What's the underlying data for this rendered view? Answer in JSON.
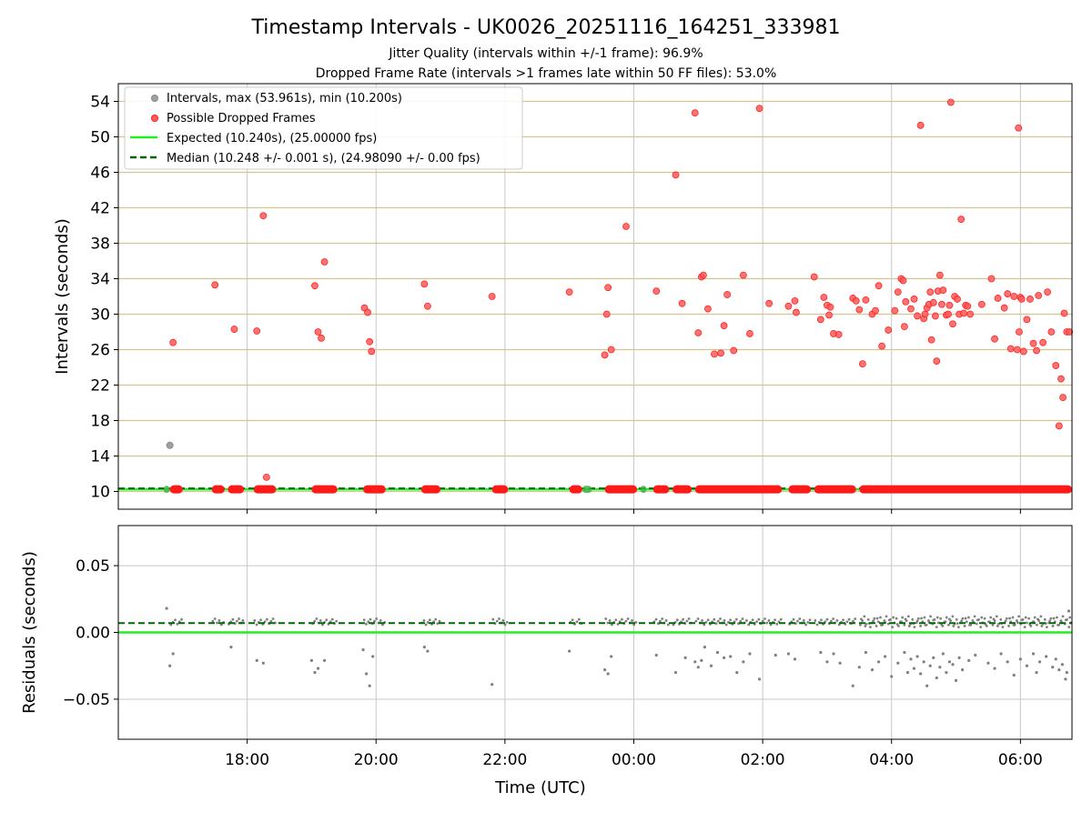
{
  "chart_data": [
    {
      "type": "scatter",
      "title": "Timestamp Intervals - UK0026_20251116_164251_333981",
      "subtitle_lines": [
        "Jitter Quality (intervals within +/-1 frame): 96.9%",
        "Dropped Frame Rate (intervals >1 frames late within 50 FF files): 53.0%"
      ],
      "xlabel": "",
      "ylabel": "Intervals (seconds)",
      "xlim_hours": [
        16.0,
        30.8
      ],
      "ylim": [
        8.0,
        56.0
      ],
      "yticks": [
        10,
        14,
        18,
        22,
        26,
        30,
        34,
        38,
        42,
        46,
        50,
        54
      ],
      "ytick_labels": [
        "10",
        "14",
        "18",
        "22",
        "26",
        "30",
        "34",
        "38",
        "42",
        "46",
        "50",
        "54"
      ],
      "xticks_hours": [
        18,
        20,
        22,
        24,
        26,
        28,
        30
      ],
      "grid": "x vertical grey, y horizontal tan",
      "legend_position": "upper-left",
      "legend": [
        {
          "label": "Intervals, max (53.961s), min (10.200s)",
          "kind": "marker",
          "color": "#a0a0a0"
        },
        {
          "label": "Possible Dropped Frames",
          "kind": "marker",
          "color": "#ff5a5a"
        },
        {
          "label": "Expected (10.240s), (25.00000 fps)",
          "kind": "line",
          "color": "#22ee22",
          "dash": false
        },
        {
          "label": "Median (10.248 +/- 0.001 s), (24.98090 +/- 0.00 fps)",
          "kind": "line",
          "color": "#006600",
          "dash": true
        }
      ],
      "expected_value": 10.24,
      "median_value": 10.248,
      "baseline_segments_hours": [
        [
          16.8,
          17.0
        ],
        [
          17.45,
          17.65
        ],
        [
          17.7,
          17.95
        ],
        [
          18.1,
          18.45
        ],
        [
          19.0,
          19.4
        ],
        [
          19.8,
          20.15
        ],
        [
          20.7,
          21.0
        ],
        [
          21.8,
          22.05
        ],
        [
          23.0,
          23.2
        ],
        [
          23.55,
          24.05
        ],
        [
          24.3,
          24.55
        ],
        [
          24.6,
          24.9
        ],
        [
          24.95,
          26.3
        ],
        [
          26.4,
          26.75
        ],
        [
          26.8,
          27.45
        ],
        [
          27.5,
          30.8
        ]
      ],
      "baseline_grey_segments_hours": [
        [
          16.7,
          16.8
        ],
        [
          23.2,
          23.35
        ],
        [
          24.1,
          24.2
        ]
      ],
      "grey_points": [
        [
          16.8,
          15.2
        ]
      ],
      "dropped_points": [
        [
          16.85,
          26.8
        ],
        [
          17.5,
          33.3
        ],
        [
          17.8,
          28.3
        ],
        [
          18.15,
          28.1
        ],
        [
          18.25,
          41.1
        ],
        [
          18.3,
          11.6
        ],
        [
          19.05,
          33.2
        ],
        [
          19.1,
          28.0
        ],
        [
          19.15,
          27.3
        ],
        [
          19.2,
          35.9
        ],
        [
          19.82,
          30.7
        ],
        [
          19.87,
          30.2
        ],
        [
          19.9,
          26.9
        ],
        [
          19.93,
          25.8
        ],
        [
          20.75,
          33.4
        ],
        [
          20.8,
          30.9
        ],
        [
          21.8,
          32.0
        ],
        [
          23.0,
          32.5
        ],
        [
          23.55,
          25.4
        ],
        [
          23.58,
          30.0
        ],
        [
          23.6,
          33.0
        ],
        [
          23.65,
          26.0
        ],
        [
          23.88,
          39.9
        ],
        [
          24.35,
          32.6
        ],
        [
          24.65,
          45.7
        ],
        [
          24.75,
          31.2
        ],
        [
          24.95,
          52.7
        ],
        [
          25.0,
          27.9
        ],
        [
          25.05,
          34.2
        ],
        [
          25.08,
          34.4
        ],
        [
          25.15,
          30.6
        ],
        [
          25.25,
          25.5
        ],
        [
          25.35,
          25.6
        ],
        [
          25.4,
          28.7
        ],
        [
          25.45,
          32.2
        ],
        [
          25.55,
          25.9
        ],
        [
          25.7,
          34.4
        ],
        [
          25.8,
          27.8
        ],
        [
          25.95,
          53.2
        ],
        [
          26.1,
          31.2
        ],
        [
          26.4,
          30.9
        ],
        [
          26.5,
          31.5
        ],
        [
          26.52,
          30.2
        ],
        [
          26.8,
          34.2
        ],
        [
          26.9,
          29.4
        ],
        [
          26.95,
          31.9
        ],
        [
          27.0,
          31.0
        ],
        [
          27.03,
          29.9
        ],
        [
          27.05,
          30.8
        ],
        [
          27.1,
          27.8
        ],
        [
          27.18,
          27.7
        ],
        [
          27.4,
          31.8
        ],
        [
          27.45,
          31.5
        ],
        [
          27.5,
          30.5
        ],
        [
          27.55,
          24.4
        ],
        [
          27.6,
          31.6
        ],
        [
          27.7,
          30.0
        ],
        [
          27.75,
          30.4
        ],
        [
          27.8,
          33.2
        ],
        [
          27.85,
          26.4
        ],
        [
          27.95,
          28.2
        ],
        [
          28.05,
          30.4
        ],
        [
          28.1,
          32.5
        ],
        [
          28.15,
          34.0
        ],
        [
          28.18,
          33.8
        ],
        [
          28.2,
          28.6
        ],
        [
          28.22,
          31.4
        ],
        [
          28.3,
          30.6
        ],
        [
          28.35,
          31.7
        ],
        [
          28.4,
          29.8
        ],
        [
          28.45,
          51.3
        ],
        [
          28.5,
          29.5
        ],
        [
          28.52,
          30.0
        ],
        [
          28.55,
          30.7
        ],
        [
          28.58,
          31.1
        ],
        [
          28.6,
          32.5
        ],
        [
          28.62,
          27.1
        ],
        [
          28.65,
          31.3
        ],
        [
          28.68,
          29.8
        ],
        [
          28.7,
          24.7
        ],
        [
          28.72,
          32.6
        ],
        [
          28.75,
          34.4
        ],
        [
          28.78,
          31.1
        ],
        [
          28.8,
          32.7
        ],
        [
          28.85,
          29.9
        ],
        [
          28.88,
          30.0
        ],
        [
          28.9,
          31.0
        ],
        [
          28.92,
          53.9
        ],
        [
          28.95,
          28.9
        ],
        [
          28.98,
          32.0
        ],
        [
          29.02,
          31.7
        ],
        [
          29.05,
          30.0
        ],
        [
          29.08,
          40.7
        ],
        [
          29.12,
          30.1
        ],
        [
          29.15,
          31.0
        ],
        [
          29.18,
          30.9
        ],
        [
          29.22,
          30.0
        ],
        [
          29.4,
          31.1
        ],
        [
          29.55,
          34.0
        ],
        [
          29.6,
          27.2
        ],
        [
          29.65,
          31.8
        ],
        [
          29.75,
          30.7
        ],
        [
          29.8,
          32.3
        ],
        [
          29.85,
          26.1
        ],
        [
          29.9,
          32.0
        ],
        [
          29.95,
          26.0
        ],
        [
          29.97,
          51.0
        ],
        [
          29.98,
          28.0
        ],
        [
          30.0,
          31.9
        ],
        [
          30.02,
          31.7
        ],
        [
          30.05,
          25.8
        ],
        [
          30.1,
          29.4
        ],
        [
          30.15,
          31.7
        ],
        [
          30.2,
          26.7
        ],
        [
          30.25,
          25.9
        ],
        [
          30.28,
          32.1
        ],
        [
          30.35,
          26.8
        ],
        [
          30.42,
          32.5
        ],
        [
          30.48,
          28.0
        ],
        [
          30.55,
          24.2
        ],
        [
          30.6,
          17.4
        ],
        [
          30.63,
          22.7
        ],
        [
          30.66,
          20.6
        ],
        [
          30.68,
          30.1
        ],
        [
          30.72,
          28.0
        ],
        [
          30.76,
          28.0
        ]
      ]
    },
    {
      "type": "scatter",
      "title": "",
      "xlabel": "Time (UTC)",
      "ylabel": "Residuals (seconds)",
      "xlim_hours": [
        16.0,
        30.8
      ],
      "ylim": [
        -0.08,
        0.08
      ],
      "yticks": [
        -0.05,
        0.0,
        0.05
      ],
      "ytick_labels": [
        "−0.05",
        "0.00",
        "0.05"
      ],
      "xticks_hours": [
        18,
        20,
        22,
        24,
        26,
        28,
        30
      ],
      "xtick_labels": [
        "18:00",
        "20:00",
        "22:00",
        "00:00",
        "02:00",
        "04:00",
        "06:00"
      ],
      "grid": "x and y grey",
      "expected_residual": 0.0,
      "median_residual": 0.007,
      "point_color": "#808080",
      "points": [
        [
          16.75,
          0.018
        ],
        [
          16.8,
          -0.025
        ],
        [
          16.85,
          -0.016
        ],
        [
          17.75,
          -0.011
        ],
        [
          18.15,
          -0.021
        ],
        [
          18.25,
          -0.023
        ],
        [
          19.0,
          -0.021
        ],
        [
          19.05,
          -0.03
        ],
        [
          19.1,
          -0.027
        ],
        [
          19.2,
          -0.021
        ],
        [
          19.8,
          -0.013
        ],
        [
          19.85,
          -0.031
        ],
        [
          19.9,
          -0.04
        ],
        [
          19.95,
          -0.018
        ],
        [
          20.75,
          -0.011
        ],
        [
          20.8,
          -0.014
        ],
        [
          21.8,
          -0.039
        ],
        [
          23.0,
          -0.014
        ],
        [
          23.55,
          -0.028
        ],
        [
          23.6,
          -0.031
        ],
        [
          23.65,
          -0.018
        ],
        [
          24.35,
          -0.017
        ],
        [
          24.65,
          -0.03
        ],
        [
          24.8,
          -0.019
        ],
        [
          24.95,
          -0.022
        ],
        [
          25.0,
          -0.026
        ],
        [
          25.05,
          -0.021
        ],
        [
          25.1,
          -0.011
        ],
        [
          25.2,
          -0.025
        ],
        [
          25.3,
          -0.015
        ],
        [
          25.4,
          -0.019
        ],
        [
          25.5,
          -0.018
        ],
        [
          25.6,
          -0.03
        ],
        [
          25.7,
          -0.022
        ],
        [
          25.8,
          -0.016
        ],
        [
          25.95,
          -0.035
        ],
        [
          26.2,
          -0.017
        ],
        [
          26.4,
          -0.016
        ],
        [
          26.5,
          -0.02
        ],
        [
          26.9,
          -0.015
        ],
        [
          27.0,
          -0.022
        ],
        [
          27.1,
          -0.016
        ],
        [
          27.2,
          -0.023
        ],
        [
          27.4,
          -0.04
        ],
        [
          27.5,
          -0.026
        ],
        [
          27.6,
          -0.015
        ],
        [
          27.7,
          -0.028
        ],
        [
          27.8,
          -0.022
        ],
        [
          27.9,
          -0.018
        ],
        [
          28.0,
          -0.033
        ],
        [
          28.1,
          -0.023
        ],
        [
          28.2,
          -0.015
        ],
        [
          28.25,
          -0.03
        ],
        [
          28.3,
          -0.02
        ],
        [
          28.35,
          -0.027
        ],
        [
          28.4,
          -0.018
        ],
        [
          28.45,
          -0.031
        ],
        [
          28.5,
          -0.022
        ],
        [
          28.55,
          -0.04
        ],
        [
          28.6,
          -0.025
        ],
        [
          28.65,
          -0.019
        ],
        [
          28.7,
          -0.034
        ],
        [
          28.75,
          -0.026
        ],
        [
          28.8,
          -0.016
        ],
        [
          28.85,
          -0.03
        ],
        [
          28.9,
          -0.022
        ],
        [
          28.95,
          -0.024
        ],
        [
          29.0,
          -0.036
        ],
        [
          29.05,
          -0.019
        ],
        [
          29.1,
          -0.028
        ],
        [
          29.2,
          -0.021
        ],
        [
          29.3,
          -0.017
        ],
        [
          29.5,
          -0.023
        ],
        [
          29.6,
          -0.027
        ],
        [
          29.7,
          -0.016
        ],
        [
          29.8,
          -0.022
        ],
        [
          29.9,
          -0.032
        ],
        [
          30.0,
          -0.02
        ],
        [
          30.1,
          -0.025
        ],
        [
          30.2,
          -0.016
        ],
        [
          30.25,
          -0.03
        ],
        [
          30.3,
          -0.022
        ],
        [
          30.4,
          -0.018
        ],
        [
          30.5,
          -0.026
        ],
        [
          30.55,
          -0.02
        ],
        [
          30.6,
          -0.028
        ],
        [
          30.65,
          -0.024
        ],
        [
          30.7,
          -0.035
        ],
        [
          30.72,
          -0.03
        ],
        [
          30.75,
          0.016
        ]
      ],
      "dense_band_segments_hours": [
        [
          16.8,
          17.0
        ],
        [
          17.45,
          17.65
        ],
        [
          17.7,
          17.95
        ],
        [
          18.1,
          18.45
        ],
        [
          19.0,
          19.4
        ],
        [
          19.8,
          20.15
        ],
        [
          20.7,
          21.0
        ],
        [
          21.8,
          22.05
        ],
        [
          23.0,
          23.2
        ],
        [
          23.55,
          24.05
        ],
        [
          24.3,
          24.55
        ],
        [
          24.6,
          24.9
        ],
        [
          24.95,
          26.3
        ],
        [
          26.4,
          26.75
        ],
        [
          26.8,
          27.45
        ],
        [
          27.5,
          30.8
        ]
      ],
      "dense_band_range": [
        0.004,
        0.012
      ]
    }
  ]
}
